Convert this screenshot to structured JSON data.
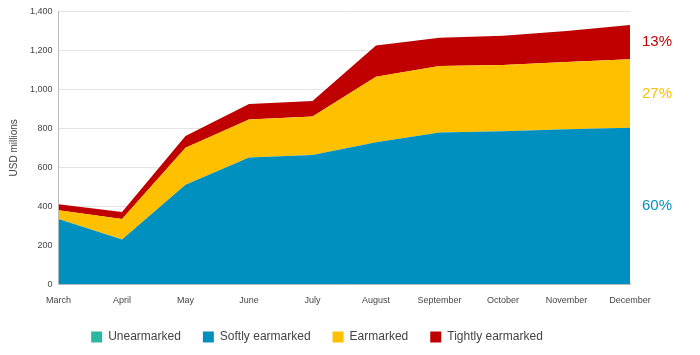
{
  "chart_data": {
    "type": "area",
    "stacked": true,
    "y_label": "USD millions",
    "categories": [
      "March",
      "April",
      "May",
      "June",
      "July",
      "August",
      "September",
      "October",
      "November",
      "December"
    ],
    "series": [
      {
        "name": "Unearmarked",
        "color": "#2bb8a0",
        "values": [
          0,
          0,
          0,
          0,
          0,
          0,
          0,
          0,
          0,
          0
        ]
      },
      {
        "name": "Softly earmarked",
        "color": "#0090c0",
        "values": [
          335,
          230,
          510,
          650,
          663,
          728,
          778,
          785,
          795,
          803
        ]
      },
      {
        "name": "Earmarked",
        "color": "#ffc000",
        "values": [
          45,
          105,
          190,
          195,
          197,
          337,
          342,
          340,
          345,
          352
        ]
      },
      {
        "name": "Tightly earmarked",
        "color": "#c00000",
        "values": [
          30,
          35,
          60,
          80,
          80,
          160,
          145,
          150,
          160,
          175
        ]
      }
    ],
    "ylim": [
      0,
      1400
    ],
    "yticks": [
      0,
      200,
      400,
      600,
      800,
      {
        "value": 1000,
        "label": "1,000"
      },
      {
        "value": 1200,
        "label": "1,200"
      },
      {
        "value": 1400,
        "label": "1,400"
      }
    ],
    "grid": true,
    "legend": "bottom",
    "annotations": [
      {
        "text": "13%",
        "series": "Tightly earmarked",
        "color": "#c00000"
      },
      {
        "text": "27%",
        "series": "Earmarked",
        "color": "#ffc000"
      },
      {
        "text": "60%",
        "series": "Softly earmarked",
        "color": "#0090c0"
      }
    ]
  }
}
